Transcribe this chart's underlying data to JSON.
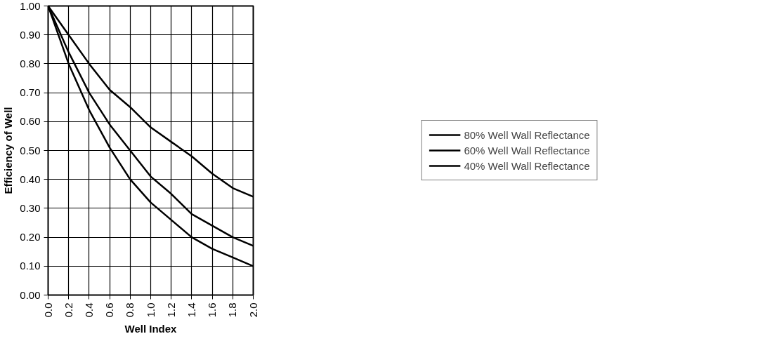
{
  "chart_data": {
    "type": "line",
    "xlabel": "Well Index",
    "ylabel": "Efficiency of Well",
    "x": [
      0.0,
      0.2,
      0.4,
      0.6,
      0.8,
      1.0,
      1.2,
      1.4,
      1.6,
      1.8,
      2.0
    ],
    "series": [
      {
        "name": "80% Well Wall Reflectance",
        "color": "#000000",
        "values": [
          1.0,
          0.9,
          0.8,
          0.71,
          0.65,
          0.58,
          0.53,
          0.48,
          0.42,
          0.37,
          0.34
        ]
      },
      {
        "name": "60% Well Wall Reflectance",
        "color": "#000000",
        "values": [
          1.0,
          0.84,
          0.7,
          0.59,
          0.5,
          0.41,
          0.35,
          0.28,
          0.24,
          0.2,
          0.17
        ]
      },
      {
        "name": "40% Well Wall Reflectance",
        "color": "#000000",
        "values": [
          1.0,
          0.8,
          0.64,
          0.51,
          0.4,
          0.32,
          0.26,
          0.2,
          0.16,
          0.13,
          0.1
        ]
      }
    ],
    "xlim": [
      0.0,
      2.0
    ],
    "ylim": [
      0.0,
      1.0
    ],
    "xticks": [
      {
        "value": 0.0,
        "label": "0.0"
      },
      {
        "value": 0.2,
        "label": "0.2"
      },
      {
        "value": 0.4,
        "label": "0.4"
      },
      {
        "value": 0.6,
        "label": "0.6"
      },
      {
        "value": 0.8,
        "label": "0.8"
      },
      {
        "value": 1.0,
        "label": "1.0"
      },
      {
        "value": 1.2,
        "label": "1.2"
      },
      {
        "value": 1.4,
        "label": "1.4"
      },
      {
        "value": 1.6,
        "label": "1.6"
      },
      {
        "value": 1.8,
        "label": "1.8"
      },
      {
        "value": 2.0,
        "label": "2.0"
      }
    ],
    "yticks": [
      {
        "value": 0.0,
        "label": "0.00"
      },
      {
        "value": 0.1,
        "label": "0.10"
      },
      {
        "value": 0.2,
        "label": "0.20"
      },
      {
        "value": 0.3,
        "label": "0.30"
      },
      {
        "value": 0.4,
        "label": "0.40"
      },
      {
        "value": 0.5,
        "label": "0.50"
      },
      {
        "value": 0.6,
        "label": "0.60"
      },
      {
        "value": 0.7,
        "label": "0.70"
      },
      {
        "value": 0.8,
        "label": "0.80"
      },
      {
        "value": 0.9,
        "label": "0.90"
      },
      {
        "value": 1.0,
        "label": "1.00"
      }
    ],
    "grid": true,
    "legend": "right",
    "marker": "none",
    "line_style": "solid"
  }
}
